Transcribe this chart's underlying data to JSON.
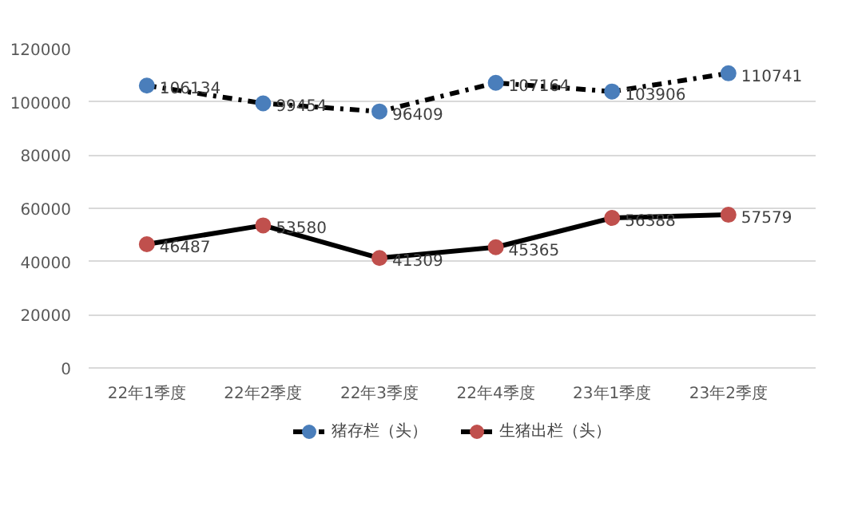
{
  "chart_data": {
    "type": "line",
    "categories": [
      "22年1季度",
      "22年2季度",
      "22年3季度",
      "22年4季度",
      "23年1季度",
      "23年2季度"
    ],
    "series": [
      {
        "name": "猪存栏（头）",
        "color": "#4a7ebb",
        "line_style": "dashed",
        "values": [
          106134,
          99454,
          96409,
          107164,
          103906,
          110741
        ]
      },
      {
        "name": "生猪出栏（头）",
        "color": "#c0504d",
        "line_style": "solid",
        "values": [
          46487,
          53580,
          41309,
          45365,
          56388,
          57579
        ]
      }
    ],
    "ylim": [
      0,
      120000
    ],
    "yticks": [
      0,
      20000,
      40000,
      60000,
      80000,
      100000,
      120000
    ],
    "grid": "y",
    "legend": "bottom",
    "marker": "circle",
    "data_labels": true
  }
}
